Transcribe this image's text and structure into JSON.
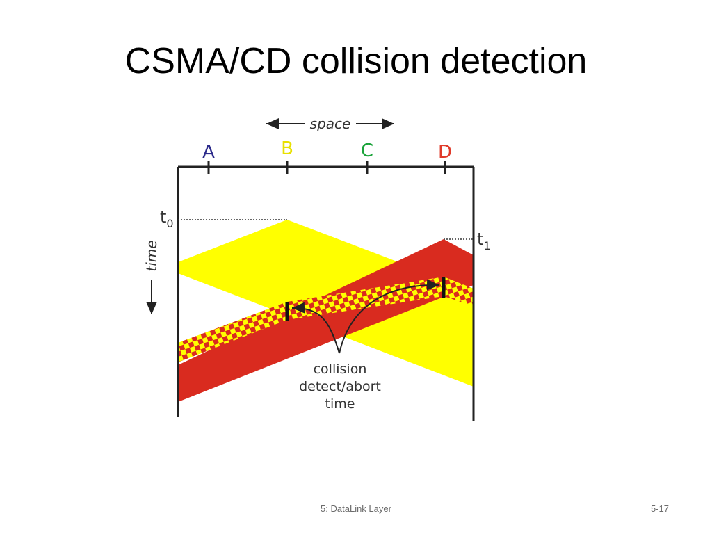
{
  "slide": {
    "title": "CSMA/CD collision detection",
    "footer_text": "5: DataLink Layer",
    "page_number": "5-17"
  },
  "diagram": {
    "space_label": "space",
    "time_label": "time",
    "nodes": [
      {
        "label": "A",
        "color": "#2b2a8a"
      },
      {
        "label": "B",
        "color": "#e8e000"
      },
      {
        "label": "C",
        "color": "#1aa33a"
      },
      {
        "label": "D",
        "color": "#e03a2a"
      }
    ],
    "t0_label": "t",
    "t0_sub": "0",
    "t1_label": "t",
    "t1_sub": "1",
    "annotation_lines": [
      "collision",
      "detect/abort",
      "time"
    ],
    "colors": {
      "signal_b": "#ffff00",
      "signal_d": "#d92b1f",
      "line": "#222222"
    }
  }
}
